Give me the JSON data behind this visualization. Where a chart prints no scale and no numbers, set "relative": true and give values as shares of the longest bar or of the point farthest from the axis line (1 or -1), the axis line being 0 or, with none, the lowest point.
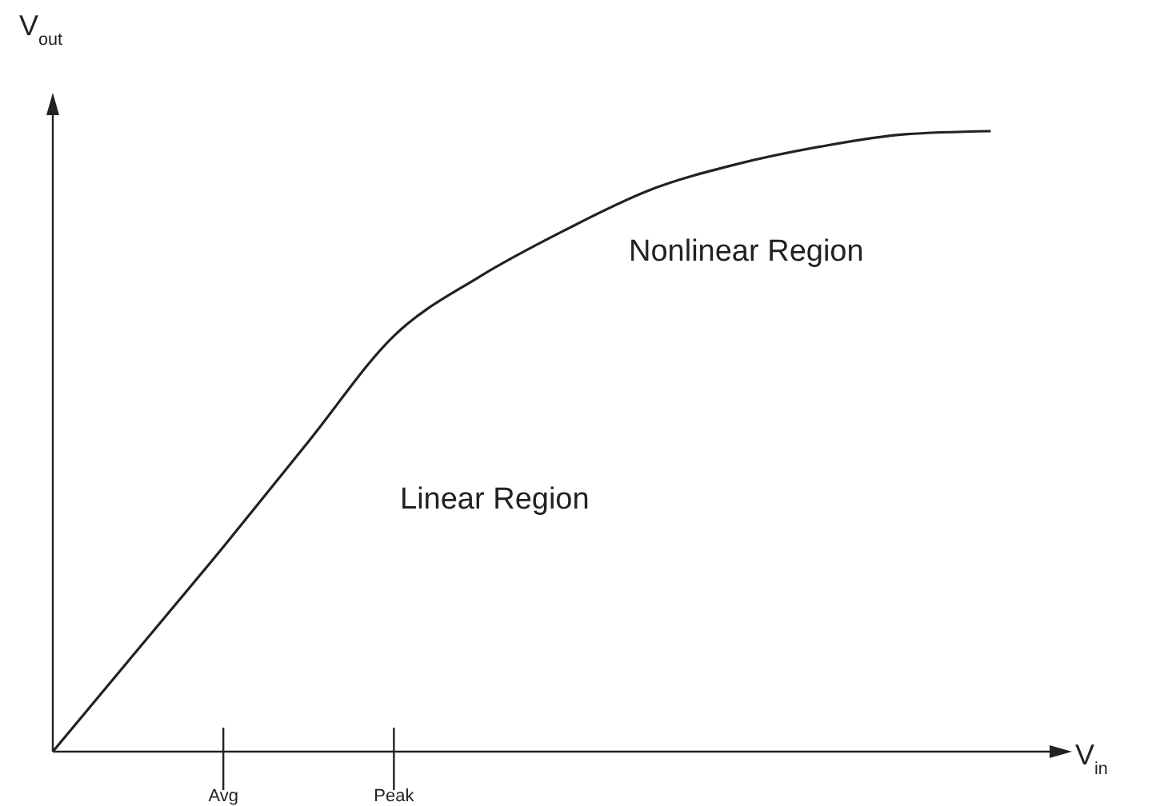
{
  "chart_data": {
    "type": "line",
    "xlabel": "V$_{in}$",
    "ylabel": "V$_{out}$",
    "relative": true,
    "tick_labels": "x",
    "categories": [
      null,
      null,
      "Avg",
      null,
      "Peak",
      null,
      null,
      null,
      null,
      null,
      null,
      null
    ],
    "values": [
      0,
      0.165,
      0.33,
      0.5,
      0.67,
      0.765,
      0.84,
      0.905,
      0.946,
      0.975,
      0.995,
      1
    ],
    "color": "#222222",
    "annotations": [
      "Linear Region",
      "Nonlinear Region"
    ]
  }
}
